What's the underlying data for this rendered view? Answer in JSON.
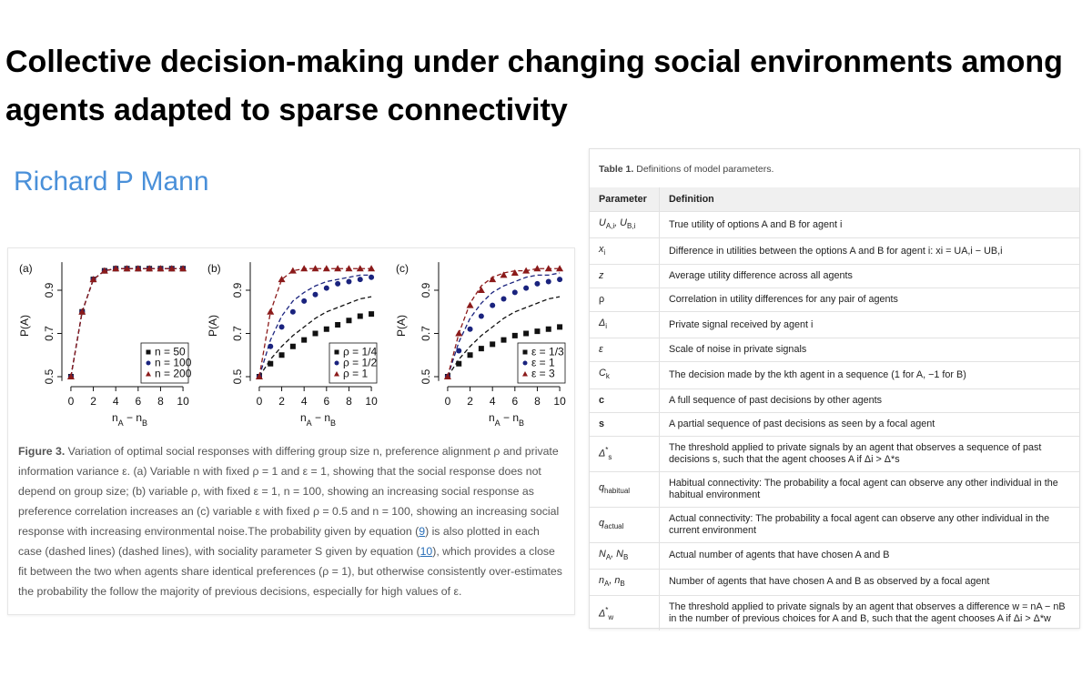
{
  "header": {
    "title": "Collective decision-making under changing social environments among agents adapted to sparse connectivity",
    "author": "Richard P Mann"
  },
  "figure": {
    "panels": [
      {
        "label": "(a)",
        "ylabel": "P(A)",
        "xlabel": [
          {
            "t": "n",
            "sub": "A"
          },
          {
            "t": " − n",
            "sub": "B"
          }
        ],
        "xlim": [
          -0.4,
          10.4
        ],
        "ylim": [
          0.48,
          1.03
        ],
        "xticks": [
          0,
          2,
          4,
          6,
          8,
          10
        ],
        "yticks": [
          0.5,
          0.7,
          0.9
        ],
        "x": [
          0,
          1,
          2,
          3,
          4,
          5,
          6,
          7,
          8,
          9,
          10
        ],
        "series": [
          {
            "name": "n = 50",
            "marker": "square",
            "color": "#111111",
            "values": [
              0.5,
              0.8,
              0.95,
              0.99,
              1.0,
              1.0,
              1.0,
              1.0,
              1.0,
              1.0,
              1.0
            ],
            "curve": [
              0.5,
              0.8,
              0.95,
              0.99,
              1.0,
              1.0,
              1.0,
              1.0,
              1.0,
              1.0,
              1.0
            ]
          },
          {
            "name": "n = 100",
            "marker": "circle",
            "color": "#1a237e",
            "values": [
              0.5,
              0.8,
              0.95,
              0.99,
              1.0,
              1.0,
              1.0,
              1.0,
              1.0,
              1.0,
              1.0
            ],
            "curve": [
              0.5,
              0.8,
              0.95,
              0.99,
              1.0,
              1.0,
              1.0,
              1.0,
              1.0,
              1.0,
              1.0
            ]
          },
          {
            "name": "n = 200",
            "marker": "triangle",
            "color": "#8b1a1a",
            "values": [
              0.5,
              0.8,
              0.95,
              0.99,
              1.0,
              1.0,
              1.0,
              1.0,
              1.0,
              1.0,
              1.0
            ],
            "curve": [
              0.5,
              0.8,
              0.95,
              0.99,
              1.0,
              1.0,
              1.0,
              1.0,
              1.0,
              1.0,
              1.0
            ]
          }
        ]
      },
      {
        "label": "(b)",
        "ylabel": "P(A)",
        "xlabel": [
          {
            "t": "n",
            "sub": "A"
          },
          {
            "t": " − n",
            "sub": "B"
          }
        ],
        "xlim": [
          -0.4,
          10.4
        ],
        "ylim": [
          0.48,
          1.03
        ],
        "xticks": [
          0,
          2,
          4,
          6,
          8,
          10
        ],
        "yticks": [
          0.5,
          0.7,
          0.9
        ],
        "x": [
          0,
          1,
          2,
          3,
          4,
          5,
          6,
          7,
          8,
          9,
          10
        ],
        "series": [
          {
            "name": "ρ = 1/4",
            "marker": "square",
            "color": "#111111",
            "values": [
              0.5,
              0.56,
              0.6,
              0.64,
              0.67,
              0.7,
              0.72,
              0.74,
              0.76,
              0.78,
              0.79
            ],
            "curve": [
              0.5,
              0.58,
              0.64,
              0.69,
              0.73,
              0.77,
              0.8,
              0.82,
              0.84,
              0.86,
              0.87
            ]
          },
          {
            "name": "ρ = 1/2",
            "marker": "circle",
            "color": "#1a237e",
            "values": [
              0.5,
              0.64,
              0.73,
              0.8,
              0.85,
              0.88,
              0.91,
              0.93,
              0.94,
              0.95,
              0.96
            ],
            "curve": [
              0.5,
              0.67,
              0.78,
              0.85,
              0.89,
              0.92,
              0.94,
              0.95,
              0.96,
              0.97,
              0.97
            ]
          },
          {
            "name": "ρ = 1",
            "marker": "triangle",
            "color": "#8b1a1a",
            "values": [
              0.5,
              0.8,
              0.95,
              0.99,
              1.0,
              1.0,
              1.0,
              1.0,
              1.0,
              1.0,
              1.0
            ],
            "curve": [
              0.5,
              0.8,
              0.95,
              0.99,
              1.0,
              1.0,
              1.0,
              1.0,
              1.0,
              1.0,
              1.0
            ]
          }
        ]
      },
      {
        "label": "(c)",
        "ylabel": "P(A)",
        "xlabel": [
          {
            "t": "n",
            "sub": "A"
          },
          {
            "t": " − n",
            "sub": "B"
          }
        ],
        "xlim": [
          -0.4,
          10.4
        ],
        "ylim": [
          0.48,
          1.03
        ],
        "xticks": [
          0,
          2,
          4,
          6,
          8,
          10
        ],
        "yticks": [
          0.5,
          0.7,
          0.9
        ],
        "x": [
          0,
          1,
          2,
          3,
          4,
          5,
          6,
          7,
          8,
          9,
          10
        ],
        "series": [
          {
            "name": "ε = 1/3",
            "marker": "square",
            "color": "#111111",
            "values": [
              0.5,
              0.56,
              0.6,
              0.63,
              0.65,
              0.67,
              0.69,
              0.7,
              0.71,
              0.72,
              0.73
            ],
            "curve": [
              0.5,
              0.58,
              0.64,
              0.69,
              0.73,
              0.77,
              0.8,
              0.82,
              0.84,
              0.86,
              0.87
            ]
          },
          {
            "name": "ε = 1",
            "marker": "circle",
            "color": "#1a237e",
            "values": [
              0.5,
              0.62,
              0.72,
              0.78,
              0.83,
              0.86,
              0.89,
              0.91,
              0.93,
              0.94,
              0.95
            ],
            "curve": [
              0.5,
              0.66,
              0.77,
              0.84,
              0.89,
              0.92,
              0.94,
              0.96,
              0.97,
              0.97,
              0.98
            ]
          },
          {
            "name": "ε = 3",
            "marker": "triangle",
            "color": "#8b1a1a",
            "values": [
              0.5,
              0.7,
              0.83,
              0.9,
              0.95,
              0.97,
              0.98,
              0.99,
              1.0,
              1.0,
              1.0
            ],
            "curve": [
              0.5,
              0.7,
              0.84,
              0.92,
              0.96,
              0.98,
              0.99,
              0.99,
              1.0,
              1.0,
              1.0
            ]
          }
        ]
      }
    ],
    "caption": {
      "label": "Figure 3.",
      "parts": [
        " Variation of optimal social responses with differing group size n, preference alignment ρ and private information variance ε. (a) Variable n with fixed ρ = 1 and ε = 1, showing that the social response does not depend on group size; (b) variable ρ, with fixed ε = 1, n = 100, showing an increasing social response as preference correlation increases an (c) variable ε with fixed ρ = 0.5 and n = 100, showing an increasing social response with increasing environmental noise.The probability given by equation (",
        "9",
        ") is also plotted in each case (dashed lines) (dashed lines), with sociality parameter S given by equation (",
        "10",
        "), which provides a close fit between the two when agents share identical preferences (ρ = 1), but otherwise consistently over-estimates the probability the follow the majority of previous decisions, especially for high values of ε."
      ]
    }
  },
  "table": {
    "title": {
      "label": "Table 1.",
      "text": " Definitions of model parameters."
    },
    "header": [
      "Parameter",
      "Definition"
    ],
    "rows": [
      {
        "param": [
          {
            "t": "U",
            "sub": "A,i"
          },
          {
            "t": ", U",
            "sub": "B,i"
          }
        ],
        "definition": "True utility of options A and B for agent i"
      },
      {
        "param": [
          {
            "t": "x",
            "sub": "i"
          }
        ],
        "definition": "Difference in utilities between the options A and B for agent i: xi = UA,i − UB,i"
      },
      {
        "param": [
          {
            "t": "z"
          }
        ],
        "definition": "Average utility difference across all agents"
      },
      {
        "param": [
          {
            "t": "ρ"
          }
        ],
        "definition": "Correlation in utility differences for any pair of agents"
      },
      {
        "param": [
          {
            "t": "Δ",
            "sub": "i"
          }
        ],
        "definition": "Private signal received by agent i"
      },
      {
        "param": [
          {
            "t": "ε"
          }
        ],
        "definition": "Scale of noise in private signals"
      },
      {
        "param": [
          {
            "t": "C",
            "sub": "k"
          }
        ],
        "definition": "The decision made by the kth agent in a sequence (1 for A, −1 for B)"
      },
      {
        "param": [
          {
            "t": "c",
            "bold": true
          }
        ],
        "definition": "A full sequence of past decisions by other agents"
      },
      {
        "param": [
          {
            "t": "s",
            "bold": true
          }
        ],
        "definition": "A partial sequence of past decisions as seen by a focal agent"
      },
      {
        "param": [
          {
            "t": "Δ",
            "sup": "*",
            "sub": "s"
          }
        ],
        "definition": "The threshold applied to private signals by an agent that observes a sequence of past decisions s, such that the agent chooses A if Δi > Δ*s"
      },
      {
        "param": [
          {
            "t": "q",
            "sub": "habitual"
          }
        ],
        "definition": "Habitual connectivity: The probability a focal agent can observe any other individual in the habitual environment"
      },
      {
        "param": [
          {
            "t": "q",
            "sub": "actual"
          }
        ],
        "definition": "Actual connectivity: The probability a focal agent can observe any other individual in the current environment"
      },
      {
        "param": [
          {
            "t": "N",
            "sub": "A"
          },
          {
            "t": ", N",
            "sub": "B"
          }
        ],
        "definition": "Actual number of agents that have chosen A and B"
      },
      {
        "param": [
          {
            "t": "n",
            "sub": "A"
          },
          {
            "t": ", n",
            "sub": "B"
          }
        ],
        "definition": "Number of agents that have chosen A and B as observed by a focal agent"
      },
      {
        "param": [
          {
            "t": "Δ",
            "sup": "*",
            "sub": "w"
          }
        ],
        "definition": "The threshold applied to private signals by an agent that observes a difference w = nA − nB in the number of previous choices for A and B, such that the agent chooses A if Δi > Δ*w"
      }
    ]
  }
}
